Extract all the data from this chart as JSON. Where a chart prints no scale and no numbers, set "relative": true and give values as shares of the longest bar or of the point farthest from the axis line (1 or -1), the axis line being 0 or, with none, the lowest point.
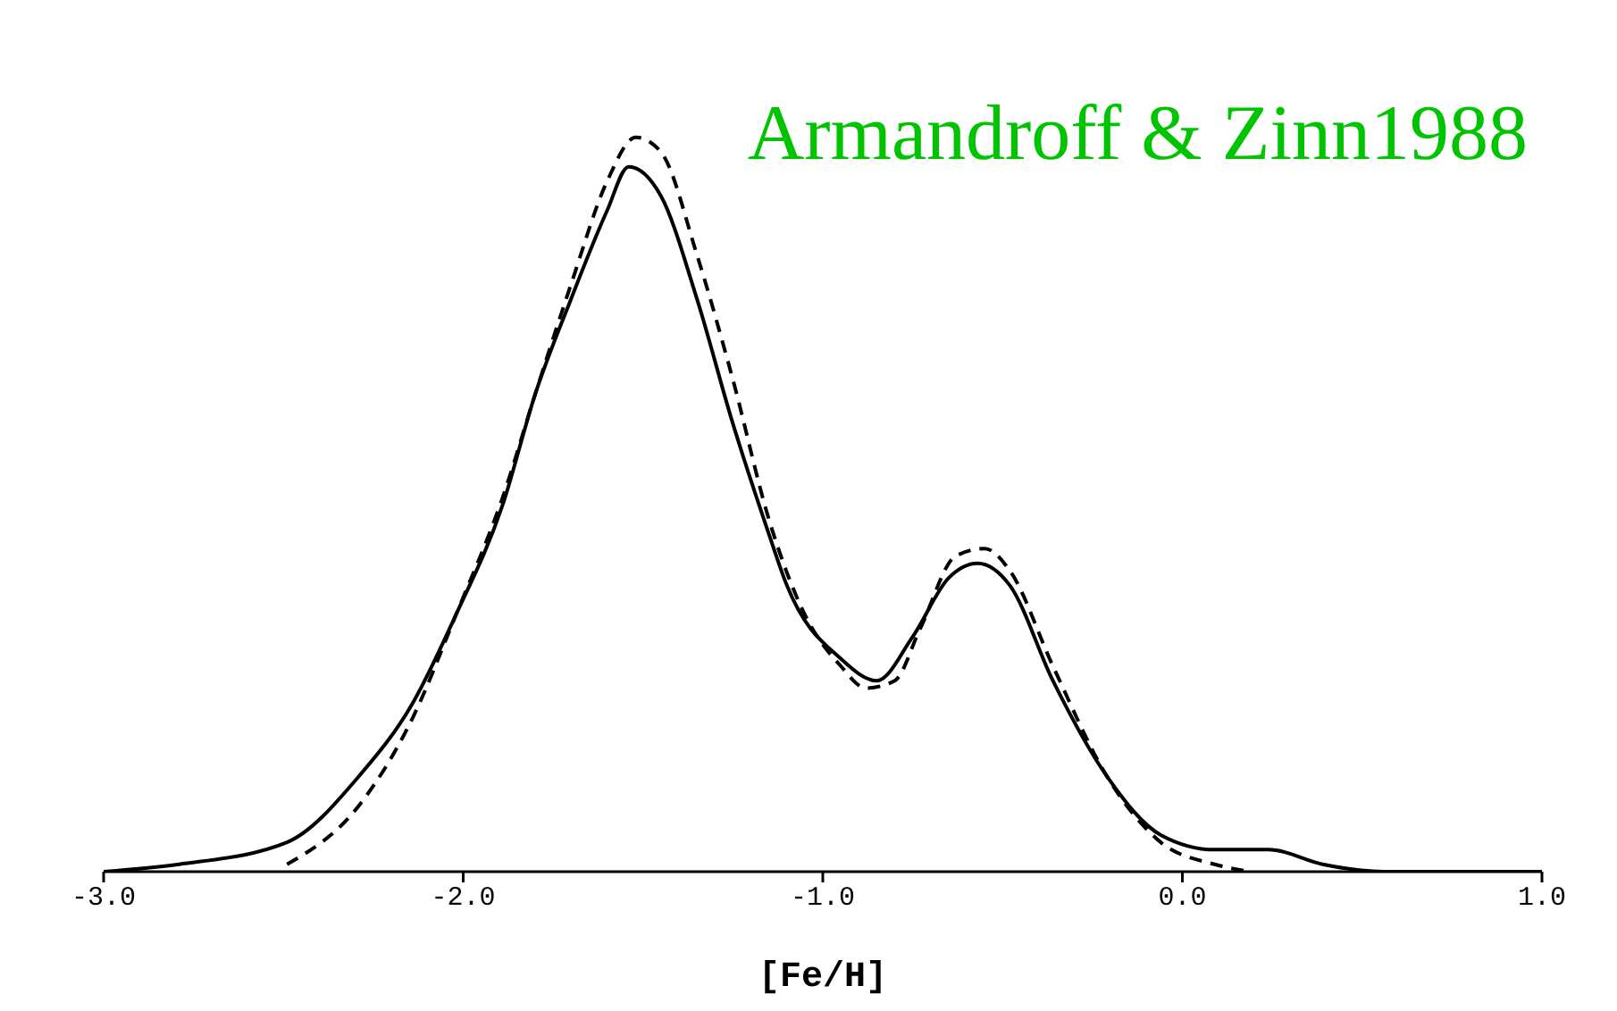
{
  "chart_data": {
    "type": "line",
    "relative": true,
    "xlabel": "[Fe/H]",
    "xlim": [
      -3,
      1
    ],
    "xticks": [
      {
        "value": -3,
        "label": "-3.0"
      },
      {
        "value": -2,
        "label": "-2.0"
      },
      {
        "value": -1,
        "label": "-1.0"
      },
      {
        "value": 0,
        "label": "0.0"
      },
      {
        "value": 1,
        "label": "1.0"
      }
    ],
    "annotations": [
      "Armandroff & Zinn1988"
    ],
    "grid": false,
    "legend": false,
    "marker": "none",
    "series": [
      {
        "color": "#000000",
        "line_style": "solid",
        "x": [
          -3.0,
          -2.79,
          -2.49,
          -2.29,
          -2.14,
          -2.02,
          -1.89,
          -1.8,
          -1.7,
          -1.6,
          -1.54,
          -1.45,
          -1.35,
          -1.25,
          -1.15,
          -1.1,
          -0.95,
          -0.85,
          -0.75,
          -0.65,
          -0.57,
          -0.48,
          -0.36,
          -0.21,
          -0.06,
          0.09,
          0.24,
          0.39,
          0.56,
          1.0
        ],
        "values": [
          0,
          0.01,
          0.04,
          0.13,
          0.23,
          0.35,
          0.5,
          0.65,
          0.78,
          0.9,
          0.96,
          0.92,
          0.78,
          0.61,
          0.46,
          0.39,
          0.29,
          0.26,
          0.32,
          0.4,
          0.42,
          0.39,
          0.26,
          0.13,
          0.05,
          0.03,
          0.03,
          0.01,
          0,
          0
        ]
      },
      {
        "color": "#000000",
        "line_style": "dashed",
        "x": [
          -2.49,
          -2.29,
          -2.14,
          -2.02,
          -1.89,
          -1.8,
          -1.7,
          -1.6,
          -1.52,
          -1.45,
          -1.35,
          -1.25,
          -1.15,
          -1.05,
          -0.95,
          -0.88,
          -0.8,
          -0.73,
          -0.63,
          -0.55,
          -0.48,
          -0.36,
          -0.21,
          -0.06,
          0.09,
          0.19
        ],
        "values": [
          0.01,
          0.09,
          0.21,
          0.35,
          0.51,
          0.65,
          0.8,
          0.94,
          1,
          0.98,
          0.84,
          0.67,
          0.48,
          0.35,
          0.28,
          0.25,
          0.26,
          0.33,
          0.43,
          0.44,
          0.41,
          0.28,
          0.13,
          0.04,
          0.01,
          0
        ]
      }
    ]
  }
}
